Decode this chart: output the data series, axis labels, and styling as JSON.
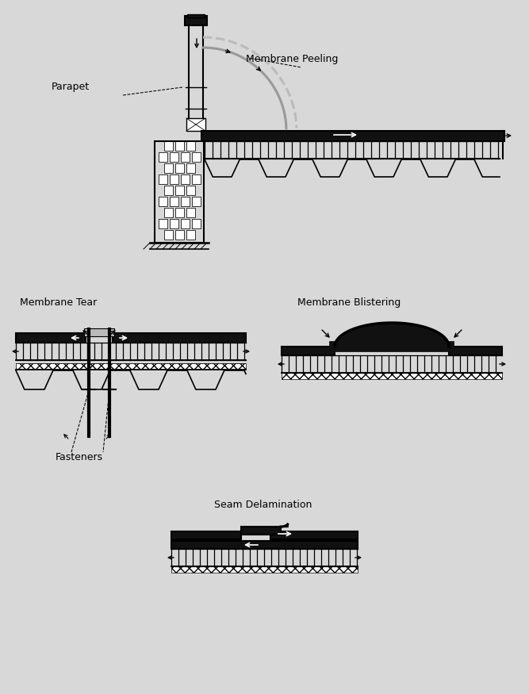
{
  "bg_color": "#d8d8d8",
  "line_color": "#000000",
  "gray_color": "#999999",
  "light_gray": "#bbbbbb",
  "dark_color": "#111111",
  "white_color": "#ffffff",
  "label_parapet": "Parapet",
  "label_membrane_peeling": "Membrane Peeling",
  "label_membrane_tear": "Membrane Tear",
  "label_membrane_blistering": "Membrane Blistering",
  "label_fasteners": "Fasteners",
  "label_seam": "Seam Delamination",
  "font_size": 9,
  "fig_w": 6.67,
  "fig_h": 8.75,
  "dpi": 100
}
